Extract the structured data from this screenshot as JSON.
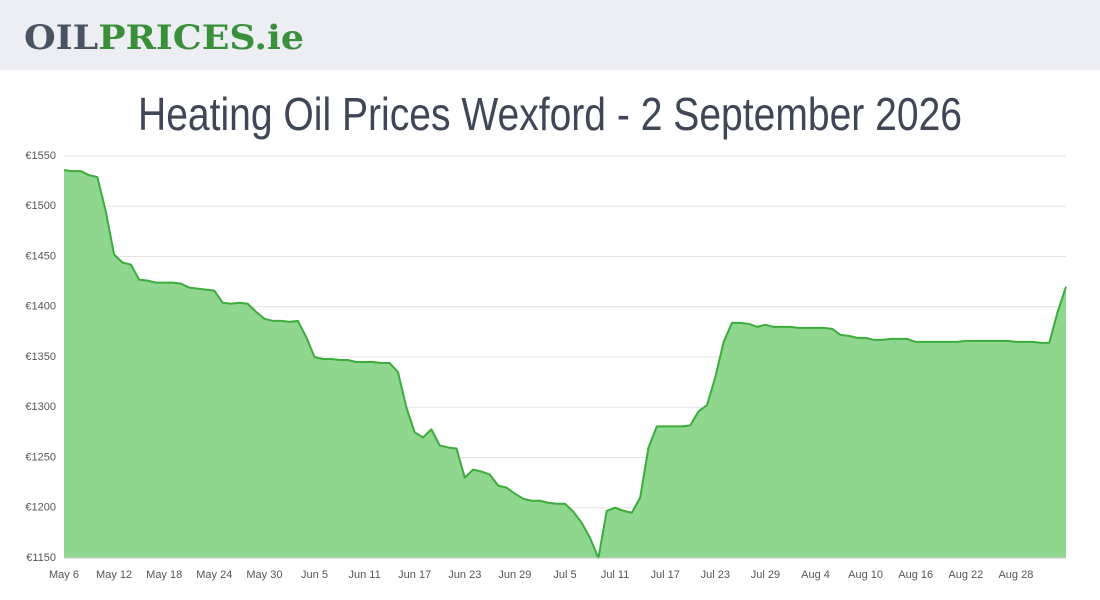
{
  "header": {
    "logo": [
      "OIL",
      "PRICES",
      ".ie"
    ]
  },
  "chart_data": {
    "type": "area",
    "title": "Heating Oil Prices Wexford - 2 September 2026",
    "color": "#3cac3c",
    "fill": "#8fd68f",
    "grid": true,
    "ylim": [
      1150,
      1550
    ],
    "yticks": [
      {
        "value": 1150,
        "label": "€1150"
      },
      {
        "value": 1200,
        "label": "€1200"
      },
      {
        "value": 1250,
        "label": "€1250"
      },
      {
        "value": 1300,
        "label": "€1300"
      },
      {
        "value": 1350,
        "label": "€1350"
      },
      {
        "value": 1400,
        "label": "€1400"
      },
      {
        "value": 1450,
        "label": "€1450"
      },
      {
        "value": 1500,
        "label": "€1500"
      },
      {
        "value": 1550,
        "label": "€1550"
      }
    ],
    "categories": [
      "May 6",
      null,
      null,
      null,
      null,
      null,
      "May 12",
      null,
      null,
      null,
      null,
      null,
      "May 18",
      null,
      null,
      null,
      null,
      null,
      "May 24",
      null,
      null,
      null,
      null,
      null,
      "May 30",
      null,
      null,
      null,
      null,
      null,
      "Jun 5",
      null,
      null,
      null,
      null,
      null,
      "Jun 11",
      null,
      null,
      null,
      null,
      null,
      "Jun 17",
      null,
      null,
      null,
      null,
      null,
      "Jun 23",
      null,
      null,
      null,
      null,
      null,
      "Jun 29",
      null,
      null,
      null,
      null,
      null,
      "Jul 5",
      null,
      null,
      null,
      null,
      null,
      "Jul 11",
      null,
      null,
      null,
      null,
      null,
      "Jul 17",
      null,
      null,
      null,
      null,
      null,
      "Jul 23",
      null,
      null,
      null,
      null,
      null,
      "Jul 29",
      null,
      null,
      null,
      null,
      null,
      "Aug 4",
      null,
      null,
      null,
      null,
      null,
      "Aug 10",
      null,
      null,
      null,
      null,
      null,
      "Aug 16",
      null,
      null,
      null,
      null,
      null,
      "Aug 22",
      null,
      null,
      null,
      null,
      null,
      "Aug 28",
      null,
      null,
      null,
      null,
      null,
      null
    ],
    "values": [
      1536,
      1535,
      1535,
      1531,
      1529,
      1495,
      1452,
      1444,
      1442,
      1427,
      1426,
      1424,
      1424,
      1424,
      1423,
      1419,
      1418,
      1417,
      1416,
      1404,
      1403,
      1404,
      1403,
      1395,
      1388,
      1386,
      1386,
      1385,
      1386,
      1370,
      1350,
      1348,
      1348,
      1347,
      1347,
      1345,
      1345,
      1345,
      1344,
      1344,
      1335,
      1300,
      1275,
      1270,
      1278,
      1262,
      1260,
      1259,
      1230,
      1238,
      1236,
      1233,
      1222,
      1220,
      1214,
      1209,
      1207,
      1207,
      1205,
      1204,
      1204,
      1196,
      1185,
      1170,
      1150,
      1197,
      1200,
      1197,
      1195,
      1210,
      1260,
      1281,
      1281,
      1281,
      1281,
      1282,
      1296,
      1302,
      1330,
      1365,
      1384,
      1384,
      1383,
      1380,
      1382,
      1380,
      1380,
      1380,
      1379,
      1379,
      1379,
      1379,
      1378,
      1372,
      1371,
      1369,
      1369,
      1367,
      1367,
      1368,
      1368,
      1368,
      1365,
      1365,
      1365,
      1365,
      1365,
      1365,
      1366,
      1366,
      1366,
      1366,
      1366,
      1366,
      1365,
      1365,
      1365,
      1364,
      1364,
      1395,
      1420
    ]
  }
}
